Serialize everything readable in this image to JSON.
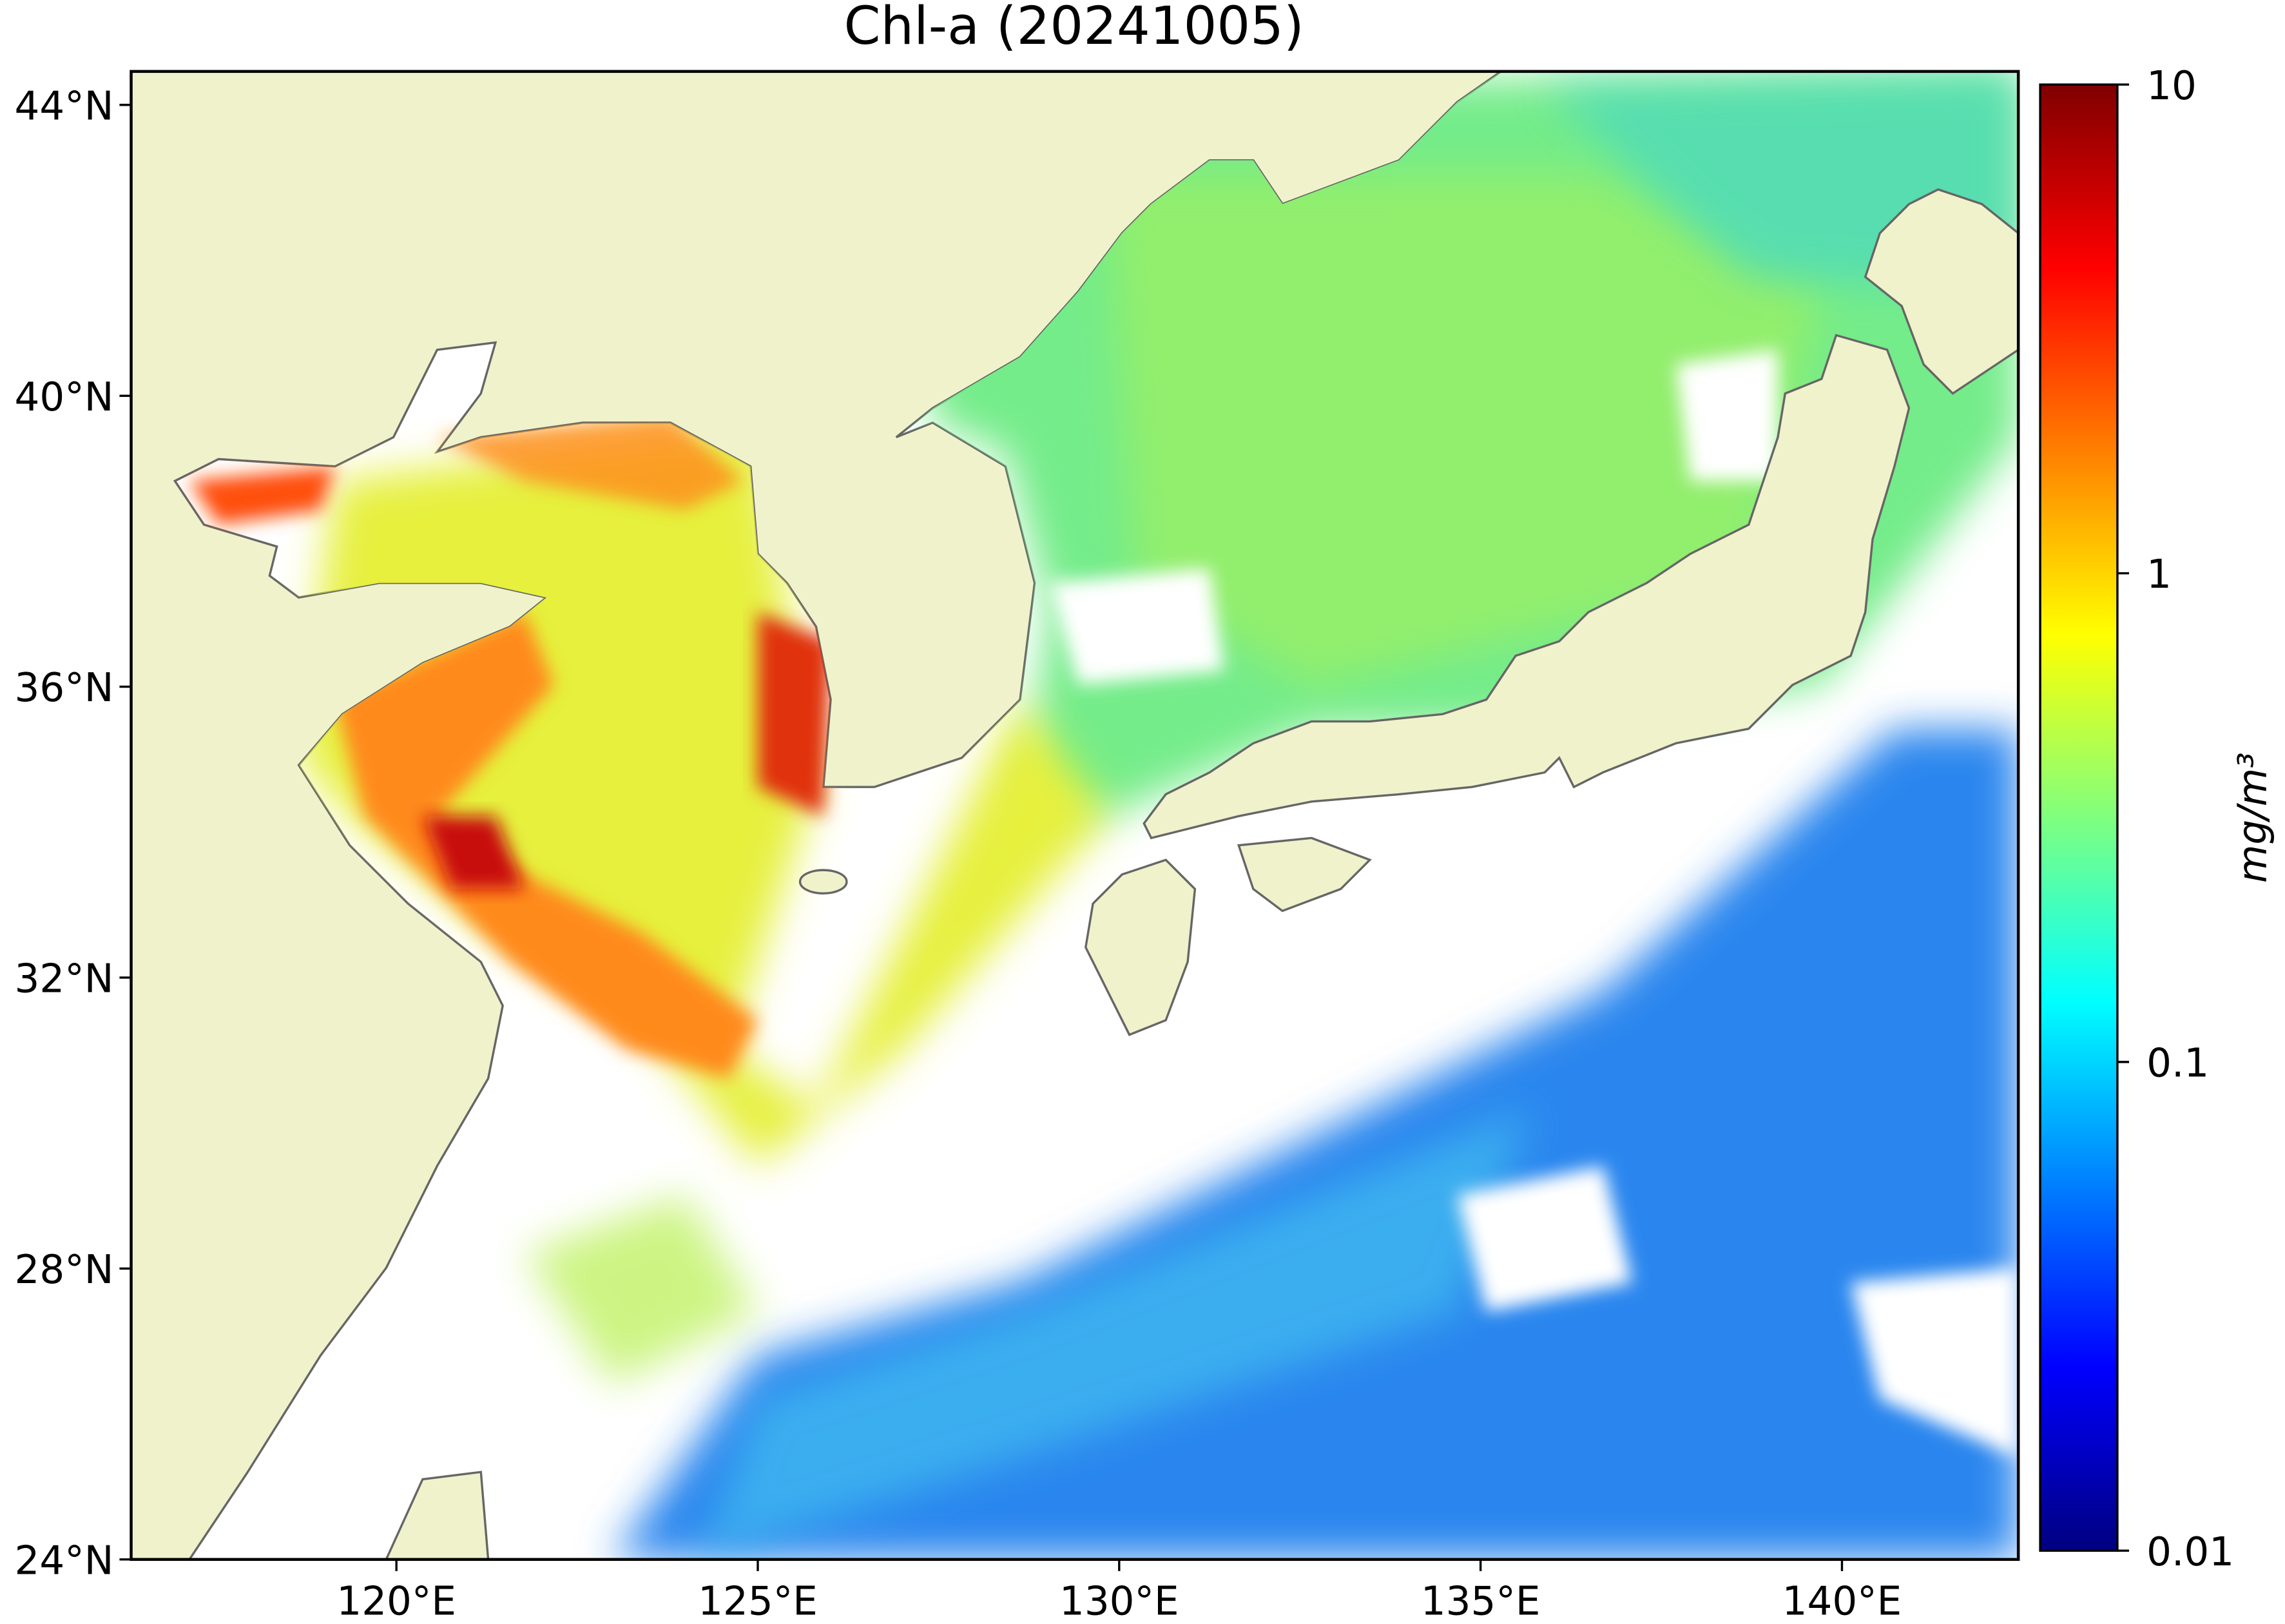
{
  "title": "Chl-a (20241005)",
  "map": {
    "lon_range": [
      116.33,
      142.44
    ],
    "lat_range": [
      24,
      44.46
    ],
    "lon_ticks": [
      {
        "value": 120,
        "label": "120°E"
      },
      {
        "value": 125,
        "label": "125°E"
      },
      {
        "value": 130,
        "label": "130°E"
      },
      {
        "value": 135,
        "label": "135°E"
      },
      {
        "value": 140,
        "label": "140°E"
      }
    ],
    "lat_ticks": [
      {
        "value": 24,
        "label": "24°N"
      },
      {
        "value": 28,
        "label": "28°N"
      },
      {
        "value": 32,
        "label": "32°N"
      },
      {
        "value": 36,
        "label": "36°N"
      },
      {
        "value": 40,
        "label": "40°N"
      },
      {
        "value": 44,
        "label": "44°N"
      }
    ]
  },
  "colorbar": {
    "label": "mg/m³",
    "scale": "log",
    "range": [
      0.01,
      10
    ],
    "ticks": [
      0.01,
      0.1,
      1,
      10
    ]
  }
}
